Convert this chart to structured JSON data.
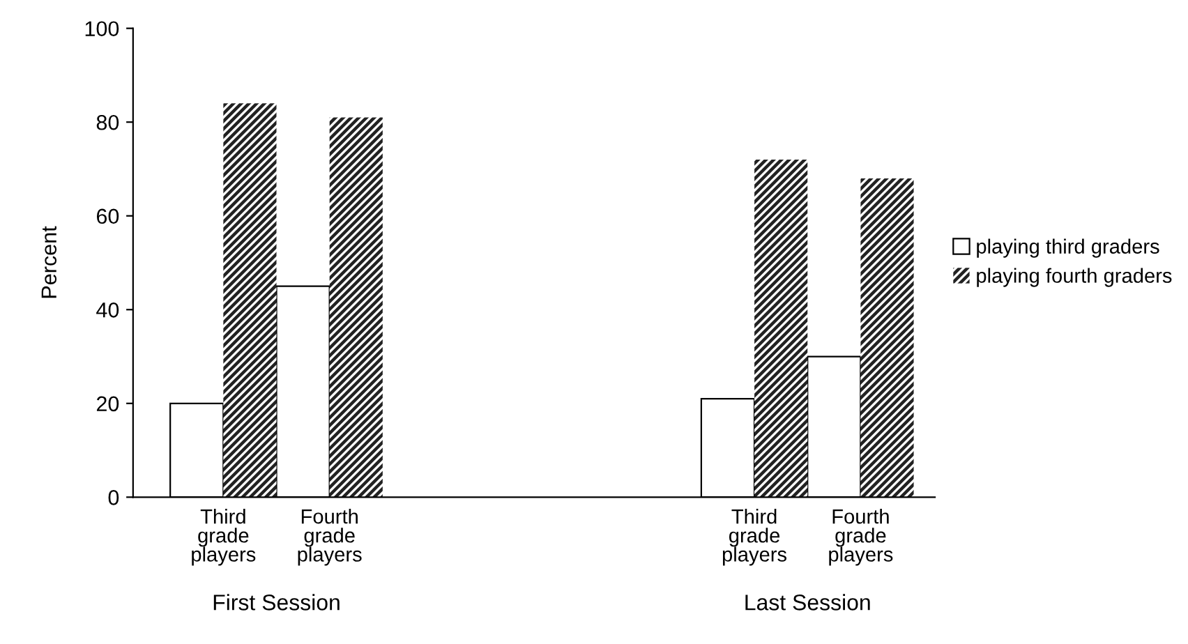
{
  "chart_data": {
    "type": "bar",
    "ylabel": "Percent",
    "categories": [
      "Third\ngrade\nplayers",
      "Fourth\ngrade\nplayers",
      null,
      null,
      null,
      "Third\ngrade\nplayers",
      "Fourth\ngrade\nplayers"
    ],
    "series": [
      {
        "name": "playing third graders",
        "color": "#ffffff",
        "values": [
          20,
          45,
          null,
          null,
          null,
          21,
          30
        ]
      },
      {
        "name": "playing fourth graders",
        "color": "#222222",
        "values": [
          84,
          81,
          null,
          null,
          null,
          72,
          68
        ]
      }
    ],
    "ylim": [
      0,
      100
    ],
    "yticks": [
      0,
      20,
      40,
      60,
      80,
      100
    ],
    "legend": "right",
    "grid": false,
    "annotations": [
      "First Session",
      "Last Session"
    ]
  }
}
